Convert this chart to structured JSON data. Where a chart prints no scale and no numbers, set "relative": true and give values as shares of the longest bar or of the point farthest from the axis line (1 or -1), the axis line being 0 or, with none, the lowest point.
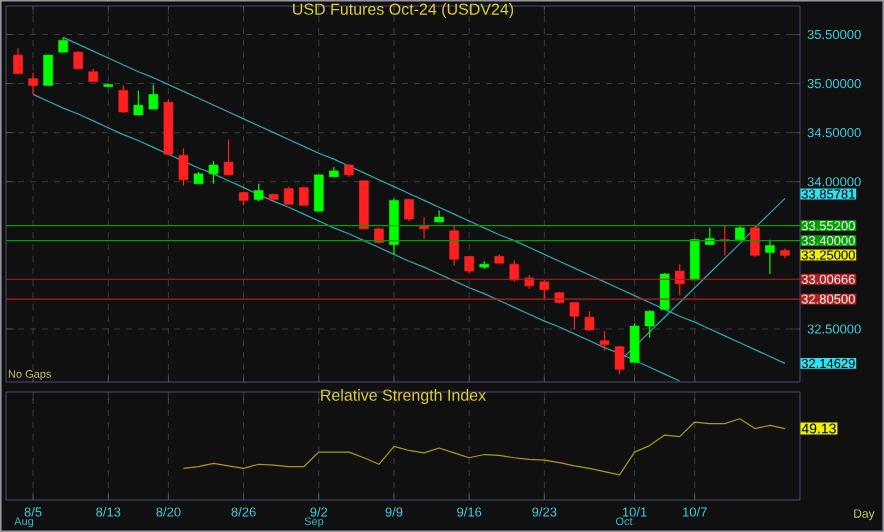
{
  "chart_data": [
    {
      "type": "candlestick",
      "title": "USD Futures Oct-24 (USDV24)",
      "categories": [
        null,
        null,
        null,
        null,
        null,
        null,
        null,
        null,
        null,
        null,
        null,
        null,
        null,
        null,
        null,
        null,
        null,
        null,
        null,
        null,
        null,
        null,
        null,
        null,
        null,
        null,
        null,
        null,
        null,
        null,
        null,
        null,
        null,
        null,
        null,
        null,
        null,
        null,
        null,
        null,
        null,
        null,
        null,
        null,
        null,
        null,
        null,
        null,
        null,
        null,
        null,
        null
      ],
      "ohlc": [
        [
          35.29,
          35.36,
          35.1,
          35.1
        ],
        [
          35.05,
          35.11,
          34.89,
          34.98
        ],
        [
          34.98,
          35.29,
          34.98,
          35.29
        ],
        [
          35.32,
          35.47,
          35.32,
          35.44
        ],
        [
          35.32,
          35.33,
          35.15,
          35.15
        ],
        [
          35.12,
          35.15,
          35.02,
          35.02
        ],
        [
          34.97,
          35.0,
          34.96,
          34.99
        ],
        [
          34.93,
          34.98,
          34.7,
          34.71
        ],
        [
          34.68,
          34.93,
          34.68,
          34.78
        ],
        [
          34.74,
          34.99,
          34.74,
          34.89
        ],
        [
          34.81,
          34.84,
          34.28,
          34.28
        ],
        [
          34.27,
          34.34,
          33.96,
          34.02
        ],
        [
          33.98,
          34.1,
          33.98,
          34.08
        ],
        [
          34.08,
          34.21,
          33.98,
          34.17
        ],
        [
          34.2,
          34.43,
          34.07,
          34.07
        ],
        [
          33.89,
          33.9,
          33.76,
          33.81
        ],
        [
          33.82,
          33.98,
          33.8,
          33.91
        ],
        [
          33.87,
          33.88,
          33.8,
          33.82
        ],
        [
          33.93,
          33.95,
          33.77,
          33.77
        ],
        [
          33.94,
          33.95,
          33.76,
          33.76
        ],
        [
          33.7,
          34.07,
          33.7,
          34.07
        ],
        [
          34.05,
          34.15,
          34.05,
          34.11
        ],
        [
          34.17,
          34.18,
          34.05,
          34.07
        ],
        [
          34.01,
          34.01,
          33.52,
          33.52
        ],
        [
          33.52,
          33.53,
          33.37,
          33.38
        ],
        [
          33.36,
          33.83,
          33.26,
          33.81
        ],
        [
          33.82,
          33.83,
          33.6,
          33.62
        ],
        [
          33.55,
          33.64,
          33.42,
          33.52
        ],
        [
          33.59,
          33.71,
          33.59,
          33.64
        ],
        [
          33.5,
          33.55,
          33.15,
          33.21
        ],
        [
          33.24,
          33.24,
          33.07,
          33.09
        ],
        [
          33.13,
          33.19,
          33.11,
          33.16
        ],
        [
          33.24,
          33.26,
          33.17,
          33.17
        ],
        [
          33.16,
          33.2,
          32.98,
          33.0
        ],
        [
          33.02,
          33.05,
          32.91,
          32.94
        ],
        [
          32.98,
          33.0,
          32.79,
          32.9
        ],
        [
          32.87,
          32.88,
          32.76,
          32.77
        ],
        [
          32.77,
          32.77,
          32.5,
          32.63
        ],
        [
          32.62,
          32.68,
          32.48,
          32.49
        ],
        [
          32.38,
          32.48,
          32.28,
          32.34
        ],
        [
          32.32,
          32.33,
          32.04,
          32.09
        ],
        [
          32.16,
          32.56,
          32.16,
          32.53
        ],
        [
          32.53,
          32.69,
          32.41,
          32.68
        ],
        [
          32.7,
          33.07,
          32.7,
          33.06
        ],
        [
          33.09,
          33.16,
          32.84,
          32.96
        ],
        [
          33.0,
          33.42,
          33.0,
          33.41
        ],
        [
          33.36,
          33.53,
          33.36,
          33.42
        ],
        [
          33.41,
          33.55,
          33.25,
          33.4
        ],
        [
          33.41,
          33.55,
          33.41,
          33.53
        ],
        [
          33.53,
          33.55,
          33.23,
          33.25
        ],
        [
          33.28,
          33.41,
          33.06,
          33.35
        ],
        [
          33.3,
          33.32,
          33.22,
          33.25
        ]
      ],
      "colors": [
        "#ff2020",
        "#ff2020",
        "#00ff00",
        "#00ff00",
        "#ff2020",
        "#ff2020",
        "#00ff00",
        "#ff2020",
        "#00ff00",
        "#00ff00",
        "#ff2020",
        "#ff2020",
        "#00ff00",
        "#00ff00",
        "#ff2020",
        "#ff2020",
        "#00ff00",
        "#ff2020",
        "#ff2020",
        "#ff2020",
        "#00ff00",
        "#00ff00",
        "#ff2020",
        "#ff2020",
        "#ff2020",
        "#00ff00",
        "#ff2020",
        "#ff2020",
        "#00ff00",
        "#ff2020",
        "#ff2020",
        "#00ff00",
        "#ff2020",
        "#ff2020",
        "#ff2020",
        "#ff2020",
        "#ff2020",
        "#ff2020",
        "#ff2020",
        "#ff2020",
        "#ff2020",
        "#00ff00",
        "#00ff00",
        "#00ff00",
        "#ff2020",
        "#00ff00",
        "#00ff00",
        "#ff2020",
        "#00ff00",
        "#ff2020",
        "#00ff00",
        "#ff2020"
      ],
      "series": [
        {
          "type": "line",
          "color": "#30a8b0",
          "values": [
            null,
            null,
            null,
            35.47,
            35.4,
            35.33,
            35.26,
            35.19,
            35.12,
            35.06,
            34.99,
            34.92,
            34.85,
            34.78,
            34.71,
            34.64,
            34.57,
            34.5,
            34.43,
            34.36,
            34.29,
            34.23,
            34.16,
            34.09,
            34.02,
            33.95,
            33.88,
            33.81,
            33.74,
            33.67,
            33.6,
            33.53,
            33.46,
            33.4,
            33.33,
            33.26,
            33.19,
            33.12,
            33.05,
            32.98,
            32.91,
            32.84,
            32.77,
            32.7,
            32.63,
            32.57,
            32.5,
            32.43,
            32.36,
            32.29,
            32.22,
            32.15
          ]
        },
        {
          "type": "line",
          "color": "#30a8b0",
          "values": [
            null,
            34.89,
            34.82,
            34.75,
            34.69,
            34.62,
            34.55,
            34.48,
            34.42,
            34.35,
            34.28,
            34.21,
            34.14,
            34.08,
            34.01,
            33.94,
            33.87,
            33.8,
            33.74,
            33.67,
            33.6,
            33.53,
            33.47,
            33.4,
            33.33,
            33.26,
            33.19,
            33.13,
            33.06,
            32.99,
            32.92,
            32.86,
            32.79,
            32.72,
            32.65,
            32.58,
            32.52,
            32.45,
            32.38,
            32.31,
            32.25,
            32.18,
            32.11,
            32.04,
            31.97,
            null,
            null,
            null,
            null,
            null,
            null,
            null
          ]
        },
        {
          "type": "line",
          "color": "#30a8b0",
          "values": [
            null,
            null,
            null,
            null,
            null,
            null,
            null,
            null,
            null,
            null,
            null,
            null,
            null,
            null,
            null,
            null,
            null,
            null,
            null,
            null,
            null,
            null,
            null,
            null,
            null,
            null,
            null,
            null,
            null,
            null,
            null,
            null,
            null,
            null,
            null,
            null,
            null,
            null,
            null,
            null,
            32.17,
            32.32,
            32.47,
            32.62,
            32.77,
            32.92,
            33.07,
            33.22,
            33.37,
            33.53,
            33.68,
            33.83
          ]
        }
      ],
      "ylim": [
        31.96,
        35.79
      ],
      "yticks": [
        {
          "value": 32.5,
          "label": "32.50000"
        },
        {
          "value": 34.0,
          "label": "34.00000"
        },
        {
          "value": 34.5,
          "label": "34.50000"
        },
        {
          "value": 35.0,
          "label": "35.00000"
        },
        {
          "value": 35.5,
          "label": "35.50000"
        }
      ],
      "ref_lines": [
        {
          "axis": "y",
          "value": 33.552,
          "label": "33.55200",
          "color": "#00a000"
        },
        {
          "axis": "y",
          "value": 33.4,
          "label": "33.40000",
          "color": "#00a000"
        },
        {
          "axis": "y",
          "value": 33.00666,
          "label": "33.00666",
          "color": "#b02020"
        },
        {
          "axis": "y",
          "value": 32.805,
          "label": "32.80500",
          "color": "#b02020"
        }
      ],
      "annotations": [
        "33.85781",
        "33.25000",
        "32.14629",
        "No Gaps"
      ],
      "grid": true,
      "tick_labels": "y"
    },
    {
      "type": "line",
      "title": "Relative Strength Index",
      "relative": true,
      "categories": [
        null,
        "8/5",
        null,
        null,
        null,
        null,
        "8/13",
        null,
        null,
        null,
        "8/20",
        null,
        null,
        null,
        null,
        "8/26",
        null,
        null,
        null,
        null,
        "9/2",
        null,
        null,
        null,
        null,
        "9/9",
        null,
        null,
        null,
        null,
        "9/16",
        null,
        null,
        null,
        null,
        "9/23",
        null,
        null,
        null,
        null,
        null,
        "10/1",
        null,
        null,
        null,
        "10/7",
        null,
        null,
        null,
        null,
        null,
        null
      ],
      "series": [
        {
          "color": "#a89a20",
          "values": [
            null,
            null,
            null,
            null,
            null,
            null,
            null,
            null,
            null,
            null,
            null,
            0.39,
            0.41,
            0.45,
            0.42,
            0.39,
            0.44,
            0.43,
            0.41,
            0.41,
            0.59,
            0.59,
            0.59,
            0.52,
            0.44,
            0.66,
            0.61,
            0.58,
            0.64,
            0.58,
            0.52,
            0.56,
            0.55,
            0.52,
            0.5,
            0.49,
            0.46,
            0.42,
            0.39,
            0.35,
            0.31,
            0.59,
            0.67,
            0.8,
            0.78,
            0.96,
            0.94,
            0.94,
            1,
            0.88,
            0.92,
            0.88
          ]
        }
      ],
      "annotations": [
        "49.13",
        "Aug",
        "Sep",
        "Oct",
        "Day"
      ],
      "grid": true,
      "tick_labels": "x"
    }
  ]
}
